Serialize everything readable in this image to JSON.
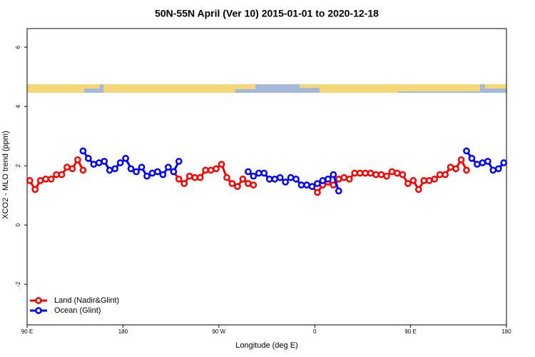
{
  "chart_data": {
    "type": "line",
    "title": "50N-55N April (Ver 10)   2015-01-01 to 2020-12-18",
    "xlabel": "Longitude (deg E)",
    "ylabel": "XCO2 - MLO trend (ppm)",
    "xlim": [
      90,
      540
    ],
    "ylim": [
      -3.37,
      6.63
    ],
    "xticks": [
      {
        "value": 90,
        "label": "90 E"
      },
      {
        "value": 180,
        "label": "180"
      },
      {
        "value": 270,
        "label": "90 W"
      },
      {
        "value": 360,
        "label": "0"
      },
      {
        "value": 450,
        "label": "90 E"
      },
      {
        "value": 540,
        "label": "180"
      }
    ],
    "yticks": [
      -2,
      0,
      2,
      4,
      6
    ],
    "grid": false,
    "legend": "bottomleft",
    "x": [
      92.5,
      97.5,
      102.5,
      107.5,
      112.5,
      117.5,
      122.5,
      127.5,
      132.5,
      137.5,
      142.5,
      147.5,
      152.5,
      157.5,
      162.5,
      167.5,
      172.5,
      177.5,
      182.5,
      187.5,
      192.5,
      197.5,
      202.5,
      207.5,
      212.5,
      217.5,
      222.5,
      227.5,
      232.5,
      237.5,
      242.5,
      247.5,
      252.5,
      257.5,
      262.5,
      267.5,
      272.5,
      277.5,
      282.5,
      287.5,
      292.5,
      297.5,
      302.5,
      307.5,
      312.5,
      317.5,
      322.5,
      327.5,
      332.5,
      337.5,
      342.5,
      347.5,
      352.5,
      357.5,
      362.5,
      367.5,
      372.5,
      377.5,
      382.5,
      387.5,
      392.5,
      397.5,
      402.5,
      407.5,
      412.5,
      417.5,
      422.5,
      427.5,
      432.5,
      437.5,
      442.5,
      447.5,
      452.5,
      457.5,
      462.5,
      467.5,
      472.5,
      477.5,
      482.5,
      487.5,
      492.5,
      497.5,
      502.5,
      507.5,
      512.5,
      517.5,
      522.5,
      527.5,
      532.5,
      537.5
    ],
    "series": [
      {
        "name": "Land (Nadir&Glint)",
        "color": "#ff0000",
        "values": [
          1.5,
          1.2,
          1.5,
          1.55,
          1.55,
          1.7,
          1.7,
          1.95,
          1.9,
          2.2,
          1.85,
          null,
          null,
          null,
          null,
          null,
          null,
          null,
          null,
          null,
          null,
          null,
          null,
          null,
          null,
          null,
          null,
          1.8,
          1.55,
          1.4,
          1.65,
          1.6,
          1.6,
          1.85,
          1.85,
          1.9,
          2.05,
          1.6,
          1.4,
          1.3,
          1.55,
          1.4,
          1.35,
          null,
          null,
          null,
          null,
          null,
          null,
          null,
          null,
          null,
          1.35,
          1.3,
          1.1,
          1.35,
          1.45,
          1.35,
          1.55,
          1.6,
          1.55,
          1.75,
          1.75,
          1.75,
          1.75,
          1.7,
          1.7,
          1.65,
          1.8,
          1.75,
          1.7,
          1.4,
          1.5,
          1.2,
          1.5,
          1.5,
          1.55,
          1.7,
          1.7,
          1.95,
          1.9,
          2.2,
          1.85,
          null,
          null,
          null,
          null,
          null,
          null,
          null
        ]
      },
      {
        "name": "Ocean (Glint)",
        "color": "#0000ff",
        "values": [
          null,
          null,
          null,
          null,
          null,
          null,
          null,
          null,
          null,
          null,
          2.5,
          2.25,
          2.05,
          2.1,
          2.15,
          1.85,
          1.9,
          2.1,
          2.25,
          1.9,
          1.8,
          1.95,
          1.65,
          1.75,
          1.8,
          1.7,
          1.95,
          1.8,
          2.15,
          null,
          null,
          null,
          null,
          null,
          null,
          null,
          null,
          null,
          null,
          null,
          null,
          1.8,
          1.65,
          1.75,
          1.75,
          1.55,
          1.55,
          1.6,
          1.45,
          1.6,
          1.55,
          1.35,
          1.35,
          1.3,
          1.4,
          1.5,
          1.55,
          1.7,
          1.15,
          null,
          null,
          null,
          null,
          null,
          null,
          null,
          null,
          null,
          null,
          null,
          null,
          null,
          null,
          null,
          null,
          null,
          null,
          null,
          null,
          null,
          null,
          null,
          2.5,
          2.25,
          2.05,
          2.1,
          2.15,
          1.85,
          1.9,
          2.1
        ]
      }
    ]
  }
}
